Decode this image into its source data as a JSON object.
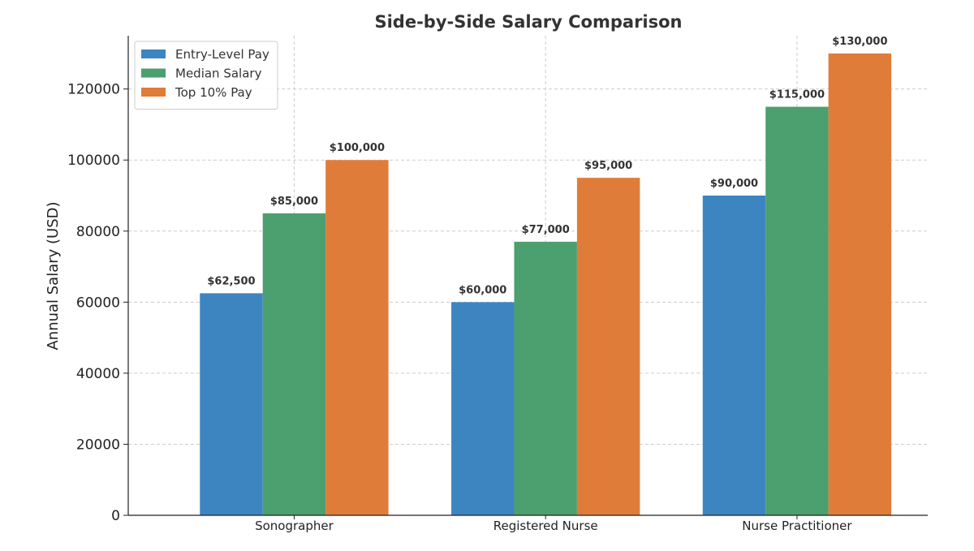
{
  "chart_data": {
    "type": "bar",
    "title": "Side-by-Side Salary Comparison",
    "xlabel": "",
    "ylabel": "Annual Salary (USD)",
    "ylim": [
      0,
      135000
    ],
    "yticks": [
      0,
      20000,
      40000,
      60000,
      80000,
      100000,
      120000
    ],
    "ytick_labels": [
      "0",
      "20000",
      "40000",
      "60000",
      "80000",
      "100000",
      "120000"
    ],
    "categories": [
      "Sonographer",
      "Registered Nurse",
      "Nurse Practitioner"
    ],
    "series": [
      {
        "name": "Entry-Level Pay",
        "color": "#3d85c0",
        "values": [
          62500,
          60000,
          90000
        ],
        "labels": [
          "$62,500",
          "$60,000",
          "$90,000"
        ]
      },
      {
        "name": "Median Salary",
        "color": "#4c9f6e",
        "values": [
          85000,
          77000,
          115000
        ],
        "labels": [
          "$85,000",
          "$77,000",
          "$115,000"
        ]
      },
      {
        "name": "Top 10% Pay",
        "color": "#e07c3a",
        "values": [
          100000,
          95000,
          130000
        ],
        "labels": [
          "$100,000",
          "$95,000",
          "$130,000"
        ]
      }
    ],
    "grid": true,
    "legend_position": "top-left"
  }
}
